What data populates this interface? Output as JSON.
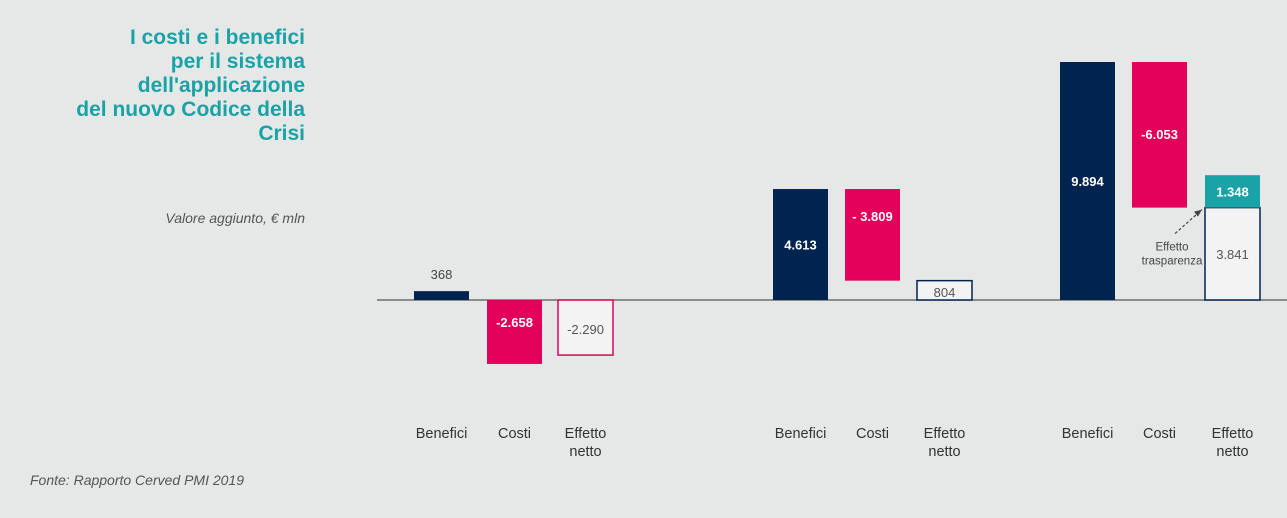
{
  "title_lines": [
    "I costi e i benefici",
    "per il sistema",
    "dell'applicazione",
    "del nuovo Codice della",
    "Crisi"
  ],
  "subtitle": "Valore aggiunto, € mln",
  "source": "Fonte: Rapporto Cerved PMI 2019",
  "colors": {
    "benefici": "#00234f",
    "costi": "#e2005a",
    "trasparenza": "#1aa3a6",
    "outline_grey": "#00234f"
  },
  "chart_data": {
    "type": "bar",
    "groups": [
      {
        "bars": [
          {
            "category": "Benefici",
            "value": 368,
            "label": "368",
            "style": "benefici"
          },
          {
            "category": "Costi",
            "value": -2658,
            "label": "-2.658",
            "style": "costi"
          },
          {
            "category": "Effetto netto",
            "value": -2290,
            "label": "-2.290",
            "style": "net-outline-red"
          }
        ]
      },
      {
        "bars": [
          {
            "category": "Benefici",
            "value": 4613,
            "label": "4.613",
            "style": "benefici"
          },
          {
            "category": "Costi",
            "value": -3809,
            "label": "- 3.809",
            "style": "costi-floating",
            "from": 4613
          },
          {
            "category": "Effetto netto",
            "value": 804,
            "label": "804",
            "style": "net-outline-blue"
          }
        ]
      },
      {
        "bars": [
          {
            "category": "Benefici",
            "value": 9894,
            "label": "9.894",
            "style": "benefici"
          },
          {
            "category": "Costi",
            "value": -6053,
            "label": "-6.053",
            "style": "costi-floating",
            "from": 9894
          },
          {
            "category": "Effetto netto",
            "value": 3841,
            "label": "3.841",
            "style": "net-outline-blue",
            "extra": {
              "value": 1348,
              "label": "1.348"
            }
          }
        ]
      }
    ],
    "annotation": {
      "lines": [
        "Effetto",
        "trasparenza"
      ]
    },
    "xlabel_lines": {
      "Benefici": [
        "Benefici"
      ],
      "Costi": [
        "Costi"
      ],
      "Effetto netto": [
        "Effetto",
        "netto"
      ]
    }
  }
}
